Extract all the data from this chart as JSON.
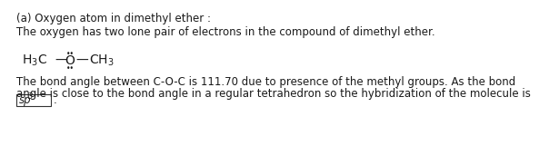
{
  "title_line": "(a) Oxygen atom in dimethyl ether :",
  "line1": "The oxygen has two lone pair of electrons in the compound of dimethyl ether.",
  "line2": "The bond angle between C-O-C is 111.70 due to presence of the methyl groups. As the bond",
  "line3": "angle is close to the bond angle in a regular tetrahedron so the hybridization of the molecule is",
  "bg_color": "#ffffff",
  "text_color": "#1a1a1a",
  "font_size": 8.5,
  "struct_font_size": 10.0,
  "sp3_font_size": 8.5,
  "sp3_super_size": 6.0
}
